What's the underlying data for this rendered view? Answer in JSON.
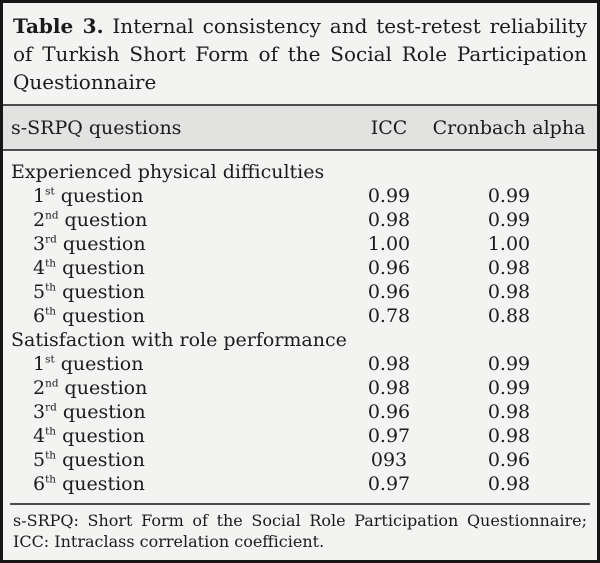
{
  "table": {
    "title_label": "Table 3.",
    "title_text": "Internal consistency and test-retest reliability of Turkish Short Form of the Social Role Participation Questionnaire",
    "columns": {
      "questions": "s-SRPQ questions",
      "icc": "ICC",
      "cronbach": "Cronbach alpha"
    },
    "sections": [
      {
        "heading": "Experienced physical difficulties",
        "rows": [
          {
            "num": "1",
            "sup": "st",
            "label": "question",
            "icc": "0.99",
            "cronbach": "0.99"
          },
          {
            "num": "2",
            "sup": "nd",
            "label": "question",
            "icc": "0.98",
            "cronbach": "0.99"
          },
          {
            "num": "3",
            "sup": "rd",
            "label": "question",
            "icc": "1.00",
            "cronbach": "1.00"
          },
          {
            "num": "4",
            "sup": "th",
            "label": "question",
            "icc": "0.96",
            "cronbach": "0.98"
          },
          {
            "num": "5",
            "sup": "th",
            "label": "question",
            "icc": "0.96",
            "cronbach": "0.98"
          },
          {
            "num": "6",
            "sup": "th",
            "label": "question",
            "icc": "0.78",
            "cronbach": "0.88"
          }
        ]
      },
      {
        "heading": "Satisfaction with role performance",
        "rows": [
          {
            "num": "1",
            "sup": "st",
            "label": "question",
            "icc": "0.98",
            "cronbach": "0.99"
          },
          {
            "num": "2",
            "sup": "nd",
            "label": "question",
            "icc": "0.98",
            "cronbach": "0.99"
          },
          {
            "num": "3",
            "sup": "rd",
            "label": "question",
            "icc": "0.96",
            "cronbach": "0.98"
          },
          {
            "num": "4",
            "sup": "th",
            "label": "question",
            "icc": "0.97",
            "cronbach": "0.98"
          },
          {
            "num": "5",
            "sup": "th",
            "label": "question",
            "icc": "093",
            "cronbach": "0.96"
          },
          {
            "num": "6",
            "sup": "th",
            "label": "question",
            "icc": "0.97",
            "cronbach": "0.98"
          }
        ]
      }
    ],
    "footnote": "s-SRPQ: Short Form of the Social Role Participation Questionnaire; ICC: Intraclass correlation coefficient."
  },
  "colors": {
    "outer_border": "#161616",
    "background": "#f3f3f1",
    "header_band": "#e2e2e0",
    "rule": "#4d4d4d",
    "text": "#1b1b1b"
  }
}
